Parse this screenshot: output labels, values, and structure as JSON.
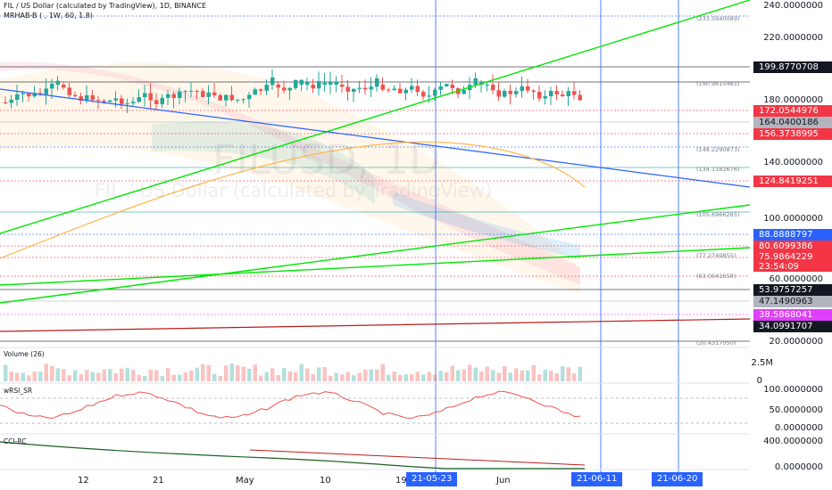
{
  "header": {
    "title": "FIL / US Dollar (calculated by TradingView), 1D, BINANCE",
    "indicator": "MRHAB-B ( , 1W, 60, 1.8)"
  },
  "watermark": {
    "symbol": "FILUSD, 1D",
    "description": "FIL / US Dollar (calculated by TradingView)"
  },
  "price_axis": {
    "ticks": [
      "240.0000000",
      "220.0000000",
      "180.0000000",
      "140.0000000",
      "100.0000000",
      "60.0000000",
      "20.0000000"
    ],
    "tags": [
      {
        "label": "199.8770708",
        "color": "#131722"
      },
      {
        "label": "172.0544976",
        "color": "#f23645"
      },
      {
        "label": "164.0400186",
        "color": "#b2b5be"
      },
      {
        "label": "156.3738995",
        "color": "#f23645"
      },
      {
        "label": "124.8419251",
        "color": "#f23645"
      },
      {
        "label": "88.8888797",
        "color": "#2962ff"
      },
      {
        "label": "80.6099386",
        "color": "#f23645"
      },
      {
        "label": "75.9864229",
        "color": "#f23645"
      },
      {
        "label": "23:54:09",
        "color": "#f23645"
      },
      {
        "label": "53.9757257",
        "color": "#131722"
      },
      {
        "label": "47.1490963",
        "color": "#b2b5be"
      },
      {
        "label": "38.5868041",
        "color": "#e040fb"
      },
      {
        "label": "34.0991707",
        "color": "#131722"
      }
    ]
  },
  "level_labels": [
    "(233.5940089)",
    "(190.9615481)",
    "(148.2290873)",
    "(134.1182676)",
    "(105.6966265)",
    "(77.2749855)",
    "(63.0641658)",
    "(20.4317050)"
  ],
  "panes": {
    "volume": {
      "label": "Volume (26)",
      "ticks": [
        "2.5M",
        "0"
      ]
    },
    "wrsi": {
      "label": "wRSI_SR",
      "ticks": [
        "100.0000000",
        "50.0000000",
        "0.0000000"
      ]
    },
    "cci": {
      "label": "CCI-RC",
      "ticks": [
        "400.0000000",
        "0.0000000"
      ]
    }
  },
  "time_axis": {
    "labels": [
      "12",
      "21",
      "May",
      "10",
      "19",
      "Jun"
    ],
    "badges": [
      "21-05-23",
      "21-06-11",
      "21-06-20"
    ]
  },
  "colors": {
    "up": "#26a69a",
    "down": "#ef5350",
    "accent": "#2962ff",
    "trend_green": "#00e600"
  }
}
